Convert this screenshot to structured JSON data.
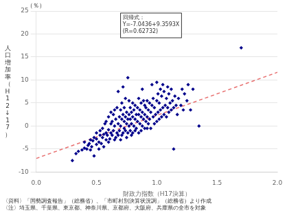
{
  "chart_data": {
    "type": "scatter",
    "xlabel": "財政力指数（H17決算）",
    "ylabel": "人口増加率（H12↓17）",
    "ylabel_unit": "（％）",
    "annotation": [
      "回帰式：",
      "Y=-7.0436+9.3593X",
      "(R=0.62732)"
    ],
    "notes": [
      "〈資料〉「国勢調査報告」（総務省）、「市町村別決算状況調」（総務省）より作成",
      "〈注〉埼玉県、千葉県、東京都、神奈川県、京都府、大阪府、兵庫県の全市を対象"
    ],
    "xlim": [
      0.0,
      2.0
    ],
    "ylim": [
      -10,
      25
    ],
    "xticks": [
      {
        "value": 0,
        "label": "0.0"
      },
      0.5,
      {
        "value": 1,
        "label": "1.0"
      },
      1.5,
      {
        "value": 2,
        "label": "2.0"
      }
    ],
    "yticks": [
      -10,
      -5,
      0,
      5,
      10,
      15,
      20,
      25
    ],
    "grid": "y",
    "series": [
      {
        "type": "scatter",
        "color": "#00008B",
        "marker": "diamond",
        "x": [
          0.3,
          0.33,
          0.35,
          0.38,
          0.4,
          0.4,
          0.42,
          0.43,
          0.44,
          0.45,
          0.45,
          0.46,
          0.47,
          0.48,
          0.48,
          0.5,
          0.5,
          0.5,
          0.52,
          0.52,
          0.53,
          0.53,
          0.54,
          0.55,
          0.55,
          0.56,
          0.56,
          0.57,
          0.58,
          0.58,
          0.58,
          0.59,
          0.6,
          0.6,
          0.6,
          0.61,
          0.62,
          0.62,
          0.62,
          0.63,
          0.63,
          0.64,
          0.64,
          0.65,
          0.65,
          0.65,
          0.66,
          0.66,
          0.67,
          0.67,
          0.68,
          0.68,
          0.68,
          0.69,
          0.69,
          0.7,
          0.7,
          0.7,
          0.71,
          0.71,
          0.71,
          0.72,
          0.72,
          0.72,
          0.73,
          0.73,
          0.73,
          0.74,
          0.74,
          0.74,
          0.75,
          0.75,
          0.75,
          0.76,
          0.76,
          0.76,
          0.77,
          0.77,
          0.77,
          0.78,
          0.78,
          0.78,
          0.79,
          0.79,
          0.79,
          0.8,
          0.8,
          0.8,
          0.81,
          0.81,
          0.82,
          0.82,
          0.82,
          0.83,
          0.83,
          0.84,
          0.84,
          0.85,
          0.85,
          0.85,
          0.86,
          0.86,
          0.87,
          0.87,
          0.87,
          0.88,
          0.88,
          0.88,
          0.89,
          0.89,
          0.9,
          0.9,
          0.9,
          0.91,
          0.91,
          0.92,
          0.92,
          0.92,
          0.93,
          0.93,
          0.94,
          0.94,
          0.95,
          0.95,
          0.96,
          0.96,
          0.97,
          0.97,
          0.98,
          0.98,
          0.99,
          1.0,
          1.0,
          1.0,
          1.01,
          1.01,
          1.02,
          1.02,
          1.03,
          1.03,
          1.04,
          1.04,
          1.05,
          1.05,
          1.06,
          1.06,
          1.07,
          1.08,
          1.08,
          1.09,
          1.09,
          1.1,
          1.1,
          1.11,
          1.12,
          1.12,
          1.13,
          1.14,
          1.14,
          1.15,
          1.16,
          1.17,
          1.18,
          1.2,
          1.21,
          1.22,
          1.23,
          1.25,
          1.26,
          1.28,
          1.3,
          1.35,
          1.7
        ],
        "values": [
          -7.5,
          -6.0,
          -5.5,
          -5.2,
          -4.8,
          -3.5,
          -5.0,
          -4.2,
          -3.8,
          -5.2,
          -3.0,
          -4.5,
          -3.2,
          -2.5,
          -6.5,
          -4.0,
          -2.8,
          -1.5,
          -5.0,
          -3.5,
          -2.0,
          -1.0,
          -3.8,
          -2.5,
          -0.5,
          -4.5,
          -1.8,
          0.5,
          -3.0,
          -1.5,
          1.0,
          -2.0,
          -3.5,
          -0.8,
          2.0,
          -2.8,
          -1.5,
          0.5,
          3.0,
          -2.0,
          1.0,
          -1.0,
          2.5,
          -3.0,
          0.0,
          3.5,
          -2.5,
          1.5,
          -1.5,
          4.0,
          -2.0,
          0.5,
          7.5,
          -1.0,
          2.0,
          -3.0,
          0.0,
          3.5,
          -2.0,
          1.5,
          5.0,
          -1.5,
          2.5,
          8.5,
          -0.5,
          1.0,
          4.0,
          -1.0,
          2.0,
          6.0,
          -2.5,
          0.5,
          3.0,
          -1.5,
          1.5,
          10.5,
          0.0,
          2.5,
          5.5,
          -1.0,
          1.5,
          4.0,
          -2.0,
          0.5,
          3.0,
          -1.5,
          2.0,
          5.0,
          0.0,
          3.5,
          -1.0,
          1.5,
          4.5,
          -0.5,
          2.5,
          1.0,
          4.0,
          -1.5,
          2.5,
          6.0,
          0.5,
          3.5,
          -1.0,
          2.0,
          5.0,
          0.0,
          3.0,
          8.0,
          1.5,
          5.5,
          -0.5,
          2.5,
          4.5,
          1.0,
          4.0,
          -0.5,
          2.0,
          5.5,
          0.5,
          3.5,
          1.5,
          5.0,
          -0.5,
          3.0,
          4.5,
          9.0,
          2.0,
          6.0,
          0.5,
          4.0,
          2.5,
          1.0,
          5.5,
          9.5,
          3.0,
          7.0,
          1.5,
          5.0,
          3.5,
          8.0,
          2.0,
          6.5,
          4.0,
          9.0,
          2.5,
          7.5,
          4.5,
          2.0,
          6.0,
          4.0,
          8.5,
          3.0,
          7.0,
          5.0,
          3.5,
          8.0,
          5.5,
          4.0,
          -5.0,
          6.5,
          4.5,
          2.5,
          6.0,
          4.5,
          8.0,
          3.5,
          7.0,
          5.5,
          9.0,
          3.5,
          8.0,
          0.0,
          17.0
        ]
      },
      {
        "type": "line",
        "color": "#E87070",
        "line_style": "dashed",
        "x": [
          0.0,
          2.0
        ],
        "values": [
          -7.0436,
          11.675
        ]
      }
    ]
  }
}
